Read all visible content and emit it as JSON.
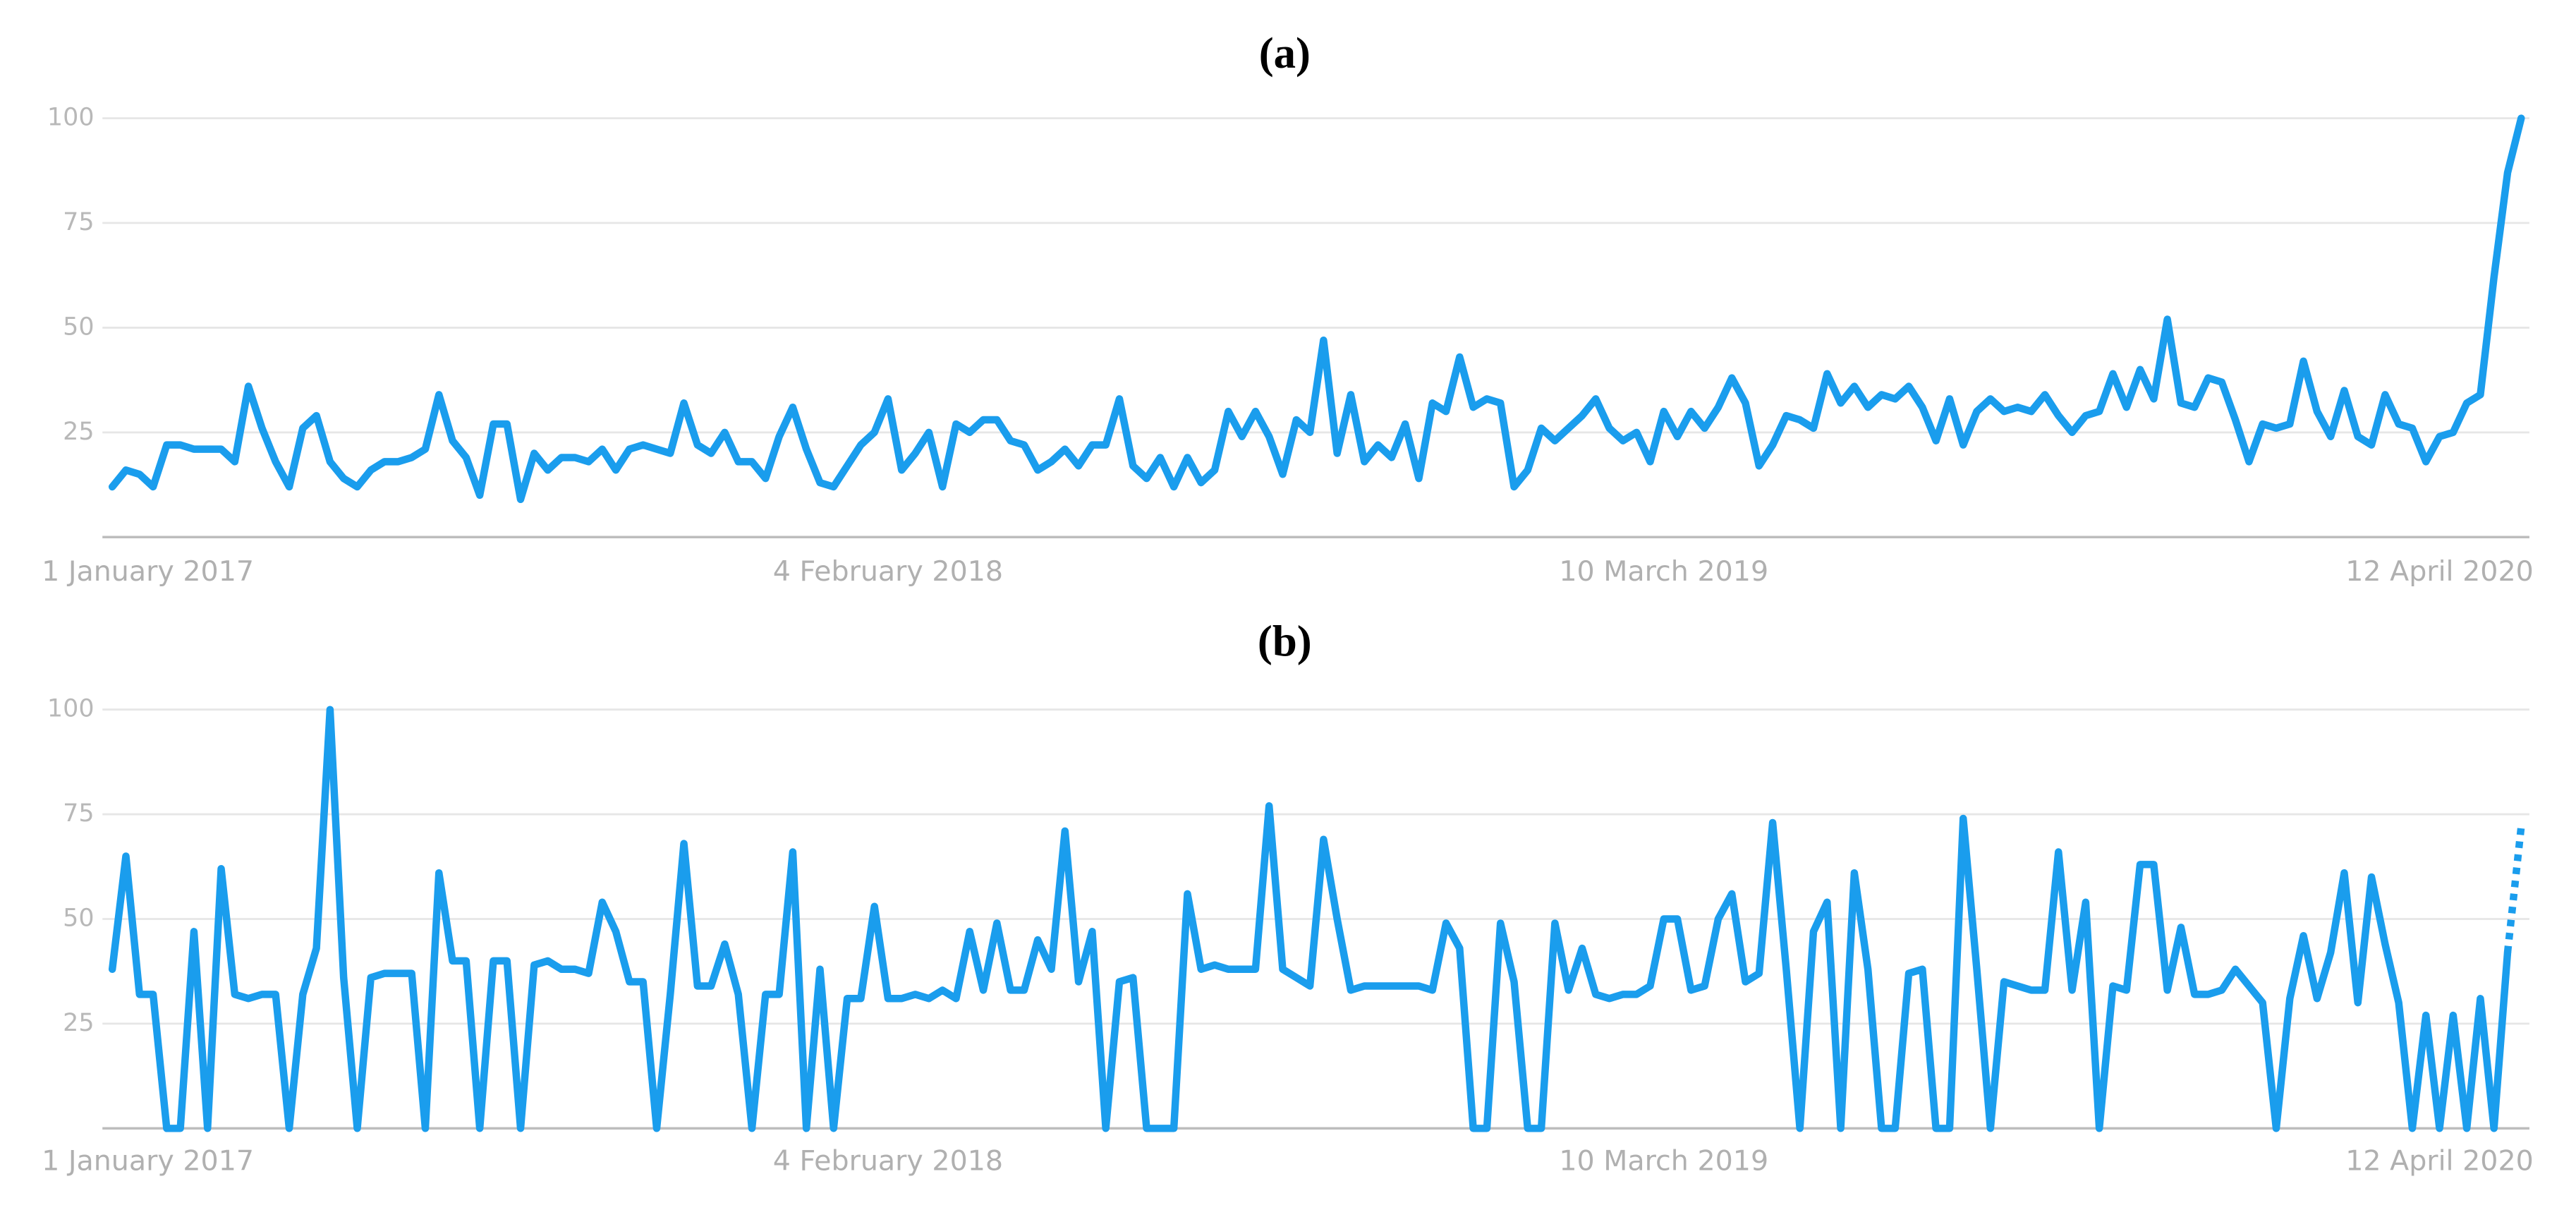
{
  "chart_data": [
    {
      "type": "line",
      "title": "(a)",
      "categories": [
        "1 January 2017",
        null,
        null,
        null,
        null,
        null,
        null,
        null,
        null,
        null,
        null,
        null,
        null,
        null,
        null,
        null,
        null,
        null,
        null,
        null,
        null,
        null,
        null,
        null,
        null,
        null,
        null,
        null,
        null,
        null,
        null,
        null,
        null,
        null,
        null,
        null,
        null,
        null,
        null,
        null,
        null,
        null,
        null,
        null,
        null,
        null,
        null,
        null,
        null,
        null,
        null,
        null,
        null,
        null,
        null,
        null,
        null,
        "4 February 2018",
        null,
        null,
        null,
        null,
        null,
        null,
        null,
        null,
        null,
        null,
        null,
        null,
        null,
        null,
        null,
        null,
        null,
        null,
        null,
        null,
        null,
        null,
        null,
        null,
        null,
        null,
        null,
        null,
        null,
        null,
        null,
        null,
        null,
        null,
        null,
        null,
        null,
        null,
        null,
        null,
        null,
        null,
        null,
        null,
        null,
        null,
        null,
        null,
        null,
        null,
        null,
        null,
        null,
        null,
        null,
        null,
        "10 March 2019",
        null,
        null,
        null,
        null,
        null,
        null,
        null,
        null,
        null,
        null,
        null,
        null,
        null,
        null,
        null,
        null,
        null,
        null,
        null,
        null,
        null,
        null,
        null,
        null,
        null,
        null,
        null,
        null,
        null,
        null,
        null,
        null,
        null,
        null,
        null,
        null,
        null,
        null,
        null,
        null,
        null,
        null,
        null,
        null,
        null,
        null,
        null,
        null,
        null,
        null,
        null,
        null,
        null,
        null,
        null,
        null,
        "12 April 2020",
        null,
        null,
        null,
        null,
        null,
        null
      ],
      "series": [
        {
          "color": "#1a9ded",
          "values": [
            12,
            16,
            15,
            12,
            22,
            22,
            21,
            21,
            21,
            18,
            36,
            26,
            18,
            12,
            26,
            29,
            18,
            14,
            12,
            16,
            18,
            18,
            19,
            21,
            34,
            23,
            19,
            10,
            27,
            27,
            9,
            20,
            16,
            19,
            19,
            18,
            21,
            16,
            21,
            22,
            21,
            20,
            32,
            22,
            20,
            25,
            18,
            18,
            14,
            24,
            31,
            21,
            13,
            12,
            17,
            22,
            25,
            33,
            16,
            20,
            25,
            12,
            27,
            25,
            28,
            28,
            23,
            22,
            16,
            18,
            21,
            17,
            22,
            22,
            33,
            17,
            14,
            19,
            12,
            19,
            13,
            16,
            30,
            24,
            30,
            24,
            15,
            28,
            25,
            47,
            20,
            34,
            18,
            22,
            19,
            27,
            14,
            32,
            30,
            43,
            31,
            33,
            32,
            12,
            16,
            26,
            23,
            26,
            29,
            33,
            26,
            23,
            25,
            18,
            30,
            24,
            30,
            26,
            31,
            38,
            32,
            17,
            22,
            29,
            28,
            26,
            39,
            32,
            36,
            31,
            34,
            33,
            36,
            31,
            23,
            33,
            22,
            30,
            33,
            30,
            31,
            30,
            34,
            29,
            25,
            29,
            30,
            39,
            31,
            40,
            33,
            52,
            32,
            31,
            38,
            37,
            28,
            18,
            27,
            26,
            27,
            42,
            30,
            24,
            35,
            24,
            22,
            34,
            27,
            26,
            18,
            24,
            25,
            32,
            34,
            62,
            87,
            100
          ]
        }
      ],
      "ylim": [
        0,
        100
      ],
      "yticks": [
        25,
        50,
        75,
        100
      ],
      "grid": true
    },
    {
      "type": "line",
      "title": "(b)",
      "categories": [
        "1 January 2017",
        null,
        null,
        null,
        null,
        null,
        null,
        null,
        null,
        null,
        null,
        null,
        null,
        null,
        null,
        null,
        null,
        null,
        null,
        null,
        null,
        null,
        null,
        null,
        null,
        null,
        null,
        null,
        null,
        null,
        null,
        null,
        null,
        null,
        null,
        null,
        null,
        null,
        null,
        null,
        null,
        null,
        null,
        null,
        null,
        null,
        null,
        null,
        null,
        null,
        null,
        null,
        null,
        null,
        null,
        null,
        null,
        "4 February 2018",
        null,
        null,
        null,
        null,
        null,
        null,
        null,
        null,
        null,
        null,
        null,
        null,
        null,
        null,
        null,
        null,
        null,
        null,
        null,
        null,
        null,
        null,
        null,
        null,
        null,
        null,
        null,
        null,
        null,
        null,
        null,
        null,
        null,
        null,
        null,
        null,
        null,
        null,
        null,
        null,
        null,
        null,
        null,
        null,
        null,
        null,
        null,
        null,
        null,
        null,
        null,
        null,
        null,
        null,
        null,
        null,
        "10 March 2019",
        null,
        null,
        null,
        null,
        null,
        null,
        null,
        null,
        null,
        null,
        null,
        null,
        null,
        null,
        null,
        null,
        null,
        null,
        null,
        null,
        null,
        null,
        null,
        null,
        null,
        null,
        null,
        null,
        null,
        null,
        null,
        null,
        null,
        null,
        null,
        null,
        null,
        null,
        null,
        null,
        null,
        null,
        null,
        null,
        null,
        null,
        null,
        null,
        null,
        null,
        null,
        null,
        null,
        null,
        null,
        null,
        "12 April 2020",
        null,
        null,
        null,
        null,
        null,
        null
      ],
      "series": [
        {
          "color": "#1a9ded",
          "last_segment_dashed": true,
          "values": [
            38,
            65,
            32,
            32,
            0,
            0,
            47,
            0,
            62,
            32,
            31,
            32,
            32,
            0,
            32,
            43,
            100,
            36,
            0,
            36,
            37,
            37,
            37,
            0,
            61,
            40,
            40,
            0,
            40,
            40,
            0,
            39,
            40,
            38,
            38,
            37,
            54,
            47,
            35,
            35,
            0,
            32,
            68,
            34,
            34,
            44,
            32,
            0,
            32,
            32,
            66,
            0,
            38,
            0,
            31,
            31,
            53,
            31,
            31,
            32,
            31,
            33,
            31,
            47,
            33,
            49,
            33,
            33,
            45,
            38,
            71,
            35,
            47,
            0,
            35,
            36,
            0,
            0,
            0,
            56,
            38,
            39,
            38,
            38,
            38,
            77,
            38,
            36,
            34,
            69,
            50,
            33,
            34,
            34,
            34,
            34,
            34,
            33,
            49,
            43,
            0,
            0,
            49,
            35,
            0,
            0,
            49,
            33,
            43,
            32,
            31,
            32,
            32,
            34,
            50,
            50,
            33,
            34,
            50,
            56,
            35,
            37,
            73,
            38,
            0,
            47,
            54,
            0,
            61,
            38,
            0,
            0,
            37,
            38,
            0,
            0,
            74,
            38,
            0,
            35,
            34,
            33,
            33,
            66,
            33,
            54,
            0,
            34,
            33,
            63,
            63,
            33,
            48,
            32,
            32,
            33,
            38,
            34,
            30,
            0,
            31,
            46,
            31,
            42,
            61,
            30,
            60,
            44,
            30,
            0,
            27,
            0,
            27,
            0,
            31,
            0,
            42,
            72
          ]
        }
      ],
      "ylim": [
        0,
        100
      ],
      "yticks": [
        25,
        50,
        75,
        100
      ],
      "grid": true
    }
  ]
}
